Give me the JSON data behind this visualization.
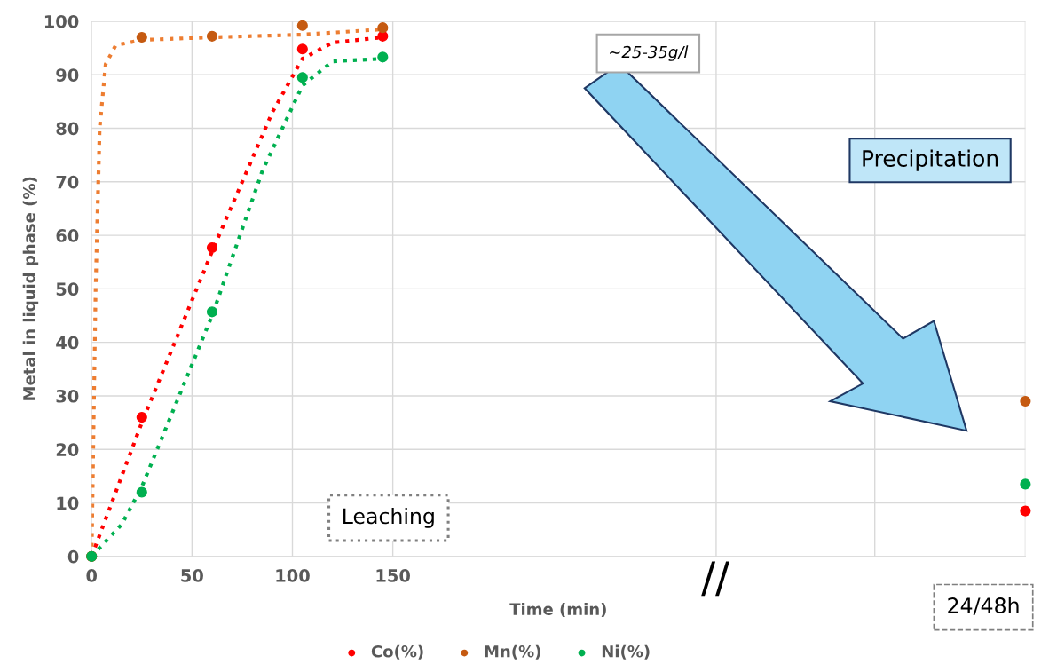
{
  "chart_data": {
    "type": "scatter",
    "xlabel": "Time (min)",
    "ylabel": "Metal in liquid phase (%)",
    "xlim": [
      0,
      465
    ],
    "xticks": [
      0,
      50,
      100,
      150,
      {
        "value": 311,
        "label": null
      },
      {
        "value": 390,
        "label": null
      },
      {
        "value": 465,
        "label": null
      }
    ],
    "ylim": [
      0,
      100
    ],
    "yticks": [
      0,
      10,
      20,
      30,
      40,
      50,
      60,
      70,
      80,
      90,
      100
    ],
    "grid": true,
    "legend": "bottom",
    "marker": "circle",
    "series": [
      {
        "type": "line",
        "color": "#ff0000",
        "line_style": "dotted",
        "marker": "none",
        "x": [
          0,
          25,
          60,
          90,
          105,
          120,
          145
        ],
        "values": [
          0,
          25,
          57,
          83,
          93,
          96,
          97
        ]
      },
      {
        "type": "line",
        "color": "#ed7d31",
        "line_style": "dotted",
        "marker": "none",
        "x": [
          0,
          2,
          4,
          7,
          12,
          25,
          60,
          105,
          145
        ],
        "values": [
          0,
          50,
          80,
          92,
          95.5,
          96.5,
          97,
          97.5,
          98.5
        ]
      },
      {
        "type": "line",
        "color": "#00b050",
        "line_style": "dotted",
        "marker": "none",
        "x": [
          0,
          15,
          25,
          60,
          85,
          105,
          120,
          145
        ],
        "values": [
          0,
          6,
          13,
          45,
          72,
          88,
          92.5,
          93
        ]
      },
      {
        "name": "Co(%)",
        "color": "#ff0000",
        "x": [
          0,
          25,
          60,
          105,
          145,
          465
        ],
        "values": [
          0,
          26,
          57.7,
          94.8,
          97.2,
          8.5
        ]
      },
      {
        "name": "Mn(%)",
        "color": "#c55a11",
        "x": [
          0,
          25,
          60,
          105,
          145,
          465
        ],
        "values": [
          0,
          97,
          97.2,
          99.2,
          98.8,
          29
        ]
      },
      {
        "name": "Ni(%)",
        "color": "#00b050",
        "x": [
          0,
          25,
          60,
          105,
          145,
          465
        ],
        "values": [
          0,
          12,
          45.7,
          89.5,
          93.3,
          13.5
        ]
      }
    ],
    "annotations": [
      "~25-35g/l",
      "Leaching",
      "Precipitation",
      "//",
      "24/48h"
    ]
  }
}
